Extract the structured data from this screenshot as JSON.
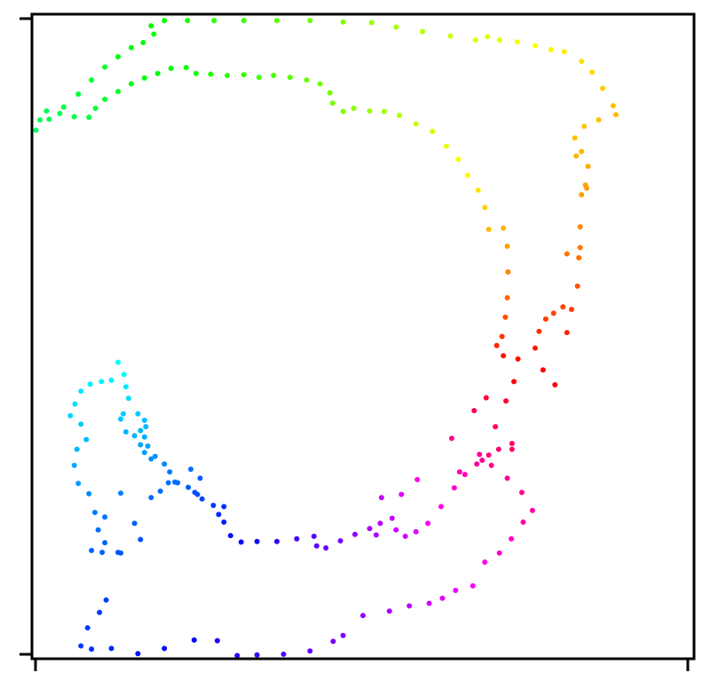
{
  "chart_data": {
    "type": "scatter",
    "title": "",
    "xlabel": "",
    "ylabel": "",
    "xlim": [
      0,
      100
    ],
    "ylim": [
      0,
      100
    ],
    "x_ticks": [
      "",
      ""
    ],
    "y_ticks": [
      "",
      ""
    ],
    "grid": false,
    "legend": "none",
    "colormap": "hsv",
    "series": [
      {
        "marker": "dot",
        "points": [
          [
            79.0,
            42.5
          ],
          [
            77.2,
            44.8
          ],
          [
            76.0,
            48.2
          ],
          [
            76.6,
            50.8
          ],
          [
            77.6,
            52.7
          ],
          [
            78.8,
            53.6
          ],
          [
            80.2,
            54.6
          ],
          [
            81.5,
            54.2
          ],
          [
            82.4,
            57.8
          ],
          [
            82.6,
            62.2
          ],
          [
            82.8,
            67.0
          ],
          [
            83.0,
            72.0
          ],
          [
            83.6,
            73.5
          ],
          [
            84.0,
            76.4
          ],
          [
            83.0,
            78.7
          ],
          [
            82.0,
            80.8
          ],
          [
            83.4,
            82.6
          ],
          [
            85.6,
            83.6
          ],
          [
            88.2,
            84.4
          ],
          [
            87.8,
            85.8
          ],
          [
            86.2,
            88.5
          ],
          [
            84.6,
            91.0
          ],
          [
            83.0,
            92.7
          ],
          [
            80.4,
            94.2
          ],
          [
            78.4,
            94.5
          ],
          [
            76.0,
            95.1
          ],
          [
            73.3,
            95.7
          ],
          [
            70.6,
            96.0
          ],
          [
            68.8,
            96.5
          ],
          [
            67.0,
            96.0
          ],
          [
            63.2,
            96.6
          ],
          [
            59.0,
            97.3
          ],
          [
            55.0,
            98.0
          ],
          [
            51.3,
            98.7
          ],
          [
            47.0,
            98.8
          ],
          [
            42.0,
            99.0
          ],
          [
            37.0,
            99.0
          ],
          [
            32.0,
            99.0
          ],
          [
            27.5,
            99.0
          ],
          [
            23.5,
            99.0
          ],
          [
            20.0,
            99.0
          ],
          [
            18.0,
            98.2
          ],
          [
            18.4,
            96.9
          ],
          [
            16.8,
            95.6
          ],
          [
            15.0,
            94.8
          ],
          [
            13.0,
            93.4
          ],
          [
            11.0,
            91.8
          ],
          [
            9.0,
            89.8
          ],
          [
            7.0,
            87.6
          ],
          [
            4.8,
            85.6
          ],
          [
            2.6,
            83.7
          ],
          [
            0.6,
            82.0
          ],
          [
            1.2,
            83.6
          ],
          [
            2.2,
            85.0
          ],
          [
            4.2,
            84.6
          ],
          [
            6.4,
            84.1
          ],
          [
            8.6,
            84.0
          ],
          [
            9.6,
            85.4
          ],
          [
            11.0,
            86.8
          ],
          [
            13.0,
            88.0
          ],
          [
            15.0,
            89.2
          ],
          [
            17.0,
            90.1
          ],
          [
            19.0,
            90.8
          ],
          [
            21.0,
            91.6
          ],
          [
            23.3,
            91.7
          ],
          [
            24.8,
            90.8
          ],
          [
            27.0,
            90.7
          ],
          [
            29.5,
            90.5
          ],
          [
            32.0,
            90.6
          ],
          [
            34.3,
            90.2
          ],
          [
            36.5,
            90.5
          ],
          [
            39.0,
            90.2
          ],
          [
            41.5,
            89.8
          ],
          [
            43.5,
            89.2
          ],
          [
            45.0,
            87.8
          ],
          [
            45.4,
            86.2
          ],
          [
            47.0,
            84.9
          ],
          [
            48.6,
            85.4
          ],
          [
            51.0,
            85.0
          ],
          [
            53.2,
            84.9
          ],
          [
            55.5,
            84.3
          ],
          [
            58.0,
            83.0
          ],
          [
            60.5,
            81.8
          ],
          [
            62.6,
            79.5
          ],
          [
            64.4,
            77.5
          ],
          [
            65.8,
            75.0
          ],
          [
            67.4,
            72.7
          ],
          [
            68.4,
            70.0
          ],
          [
            69.0,
            66.6
          ],
          [
            71.2,
            66.8
          ],
          [
            71.8,
            64.0
          ],
          [
            71.9,
            60.0
          ],
          [
            71.8,
            56.0
          ],
          [
            71.5,
            53.0
          ],
          [
            71.0,
            50.0
          ],
          [
            70.2,
            48.6
          ],
          [
            71.2,
            47.0
          ],
          [
            73.4,
            46.5
          ],
          [
            72.8,
            43.0
          ],
          [
            71.6,
            40.0
          ],
          [
            70.0,
            36.0
          ],
          [
            67.6,
            31.7
          ],
          [
            69.4,
            30.0
          ],
          [
            71.8,
            28.0
          ],
          [
            74.0,
            25.8
          ],
          [
            75.6,
            23.0
          ],
          [
            74.2,
            21.2
          ],
          [
            72.4,
            18.6
          ],
          [
            70.6,
            16.4
          ],
          [
            68.4,
            15.0
          ],
          [
            66.6,
            11.3
          ],
          [
            64.0,
            10.6
          ],
          [
            62.0,
            9.4
          ],
          [
            60.0,
            8.6
          ],
          [
            57.0,
            8.2
          ],
          [
            54.0,
            7.4
          ],
          [
            50.0,
            6.7
          ],
          [
            47.0,
            3.6
          ],
          [
            45.5,
            2.7
          ],
          [
            42.0,
            1.2
          ],
          [
            38.0,
            0.7
          ],
          [
            34.0,
            0.6
          ],
          [
            31.0,
            0.5
          ],
          [
            28.0,
            2.8
          ],
          [
            24.5,
            2.9
          ],
          [
            20.0,
            1.6
          ],
          [
            16.0,
            0.8
          ],
          [
            12.0,
            1.6
          ],
          [
            9.0,
            1.5
          ],
          [
            7.4,
            2.0
          ],
          [
            8.4,
            4.8
          ],
          [
            10.2,
            7.2
          ],
          [
            11.2,
            9.1
          ],
          [
            13.0,
            16.5
          ],
          [
            13.4,
            16.4
          ],
          [
            10.6,
            16.5
          ],
          [
            11.0,
            18.0
          ],
          [
            10.0,
            20.0
          ],
          [
            9.5,
            22.7
          ],
          [
            8.6,
            25.6
          ],
          [
            7.0,
            27.2
          ],
          [
            6.4,
            30.0
          ],
          [
            6.8,
            32.5
          ],
          [
            8.2,
            34.0
          ],
          [
            7.4,
            36.4
          ],
          [
            5.8,
            37.7
          ],
          [
            6.5,
            39.5
          ],
          [
            7.4,
            41.5
          ],
          [
            8.8,
            42.6
          ],
          [
            10.5,
            43.0
          ],
          [
            12.0,
            43.2
          ],
          [
            13.9,
            44.1
          ],
          [
            14.2,
            42.2
          ],
          [
            14.6,
            40.4
          ],
          [
            13.8,
            38.0
          ],
          [
            13.4,
            37.2
          ],
          [
            14.2,
            35.2
          ],
          [
            15.5,
            34.6
          ],
          [
            17.0,
            34.4
          ],
          [
            17.5,
            33.0
          ],
          [
            18.6,
            31.4
          ],
          [
            20.0,
            30.2
          ],
          [
            20.8,
            29.0
          ],
          [
            20.6,
            27.3
          ],
          [
            22.0,
            27.3
          ],
          [
            23.6,
            26.6
          ],
          [
            24.6,
            25.8
          ],
          [
            25.7,
            24.8
          ],
          [
            27.4,
            23.8
          ],
          [
            28.2,
            22.4
          ],
          [
            29.0,
            23.6
          ],
          [
            29.0,
            21.2
          ],
          [
            30.0,
            19.1
          ],
          [
            31.6,
            18.1
          ],
          [
            34.0,
            18.2
          ],
          [
            37.0,
            18.2
          ],
          [
            40.0,
            18.6
          ],
          [
            42.6,
            19.0
          ],
          [
            43.0,
            17.5
          ],
          [
            44.4,
            17.2
          ],
          [
            46.6,
            18.3
          ],
          [
            48.8,
            19.3
          ],
          [
            51.0,
            20.2
          ],
          [
            52.6,
            21.0
          ],
          [
            54.4,
            21.8
          ],
          [
            55.0,
            20.0
          ],
          [
            56.4,
            19.0
          ],
          [
            58.0,
            19.7
          ],
          [
            59.8,
            21.0
          ],
          [
            61.8,
            23.6
          ],
          [
            63.8,
            26.5
          ],
          [
            65.4,
            28.6
          ],
          [
            67.2,
            30.2
          ],
          [
            68.0,
            30.8
          ],
          [
            69.0,
            31.6
          ],
          [
            70.5,
            32.5
          ],
          [
            72.5,
            33.4
          ],
          [
            17.2,
            36.0
          ],
          [
            13.0,
            46.0
          ],
          [
            17.0,
            37.0
          ],
          [
            16.4,
            33.2
          ],
          [
            17.0,
            32.0
          ],
          [
            13.4,
            25.7
          ],
          [
            9.0,
            16.8
          ],
          [
            11.0,
            22.0
          ],
          [
            16.0,
            38.0
          ],
          [
            16.4,
            35.4
          ],
          [
            18.0,
            31.0
          ],
          [
            24.0,
            29.4
          ],
          [
            25.4,
            28.0
          ],
          [
            25.0,
            25.5
          ],
          [
            18.0,
            25.0
          ],
          [
            19.4,
            26.0
          ],
          [
            15.5,
            21.0
          ],
          [
            16.4,
            18.5
          ],
          [
            21.6,
            27.4
          ],
          [
            52.0,
            19.2
          ],
          [
            52.8,
            25.0
          ],
          [
            55.8,
            25.5
          ],
          [
            58.2,
            27.8
          ],
          [
            72.5,
            32.5
          ],
          [
            64.6,
            29.0
          ],
          [
            63.4,
            34.2
          ],
          [
            66.8,
            38.5
          ],
          [
            68.6,
            40.5
          ],
          [
            80.8,
            50.6
          ],
          [
            80.8,
            62.8
          ],
          [
            82.8,
            63.8
          ],
          [
            83.8,
            73.0
          ],
          [
            82.2,
            78.0
          ]
        ]
      }
    ]
  }
}
